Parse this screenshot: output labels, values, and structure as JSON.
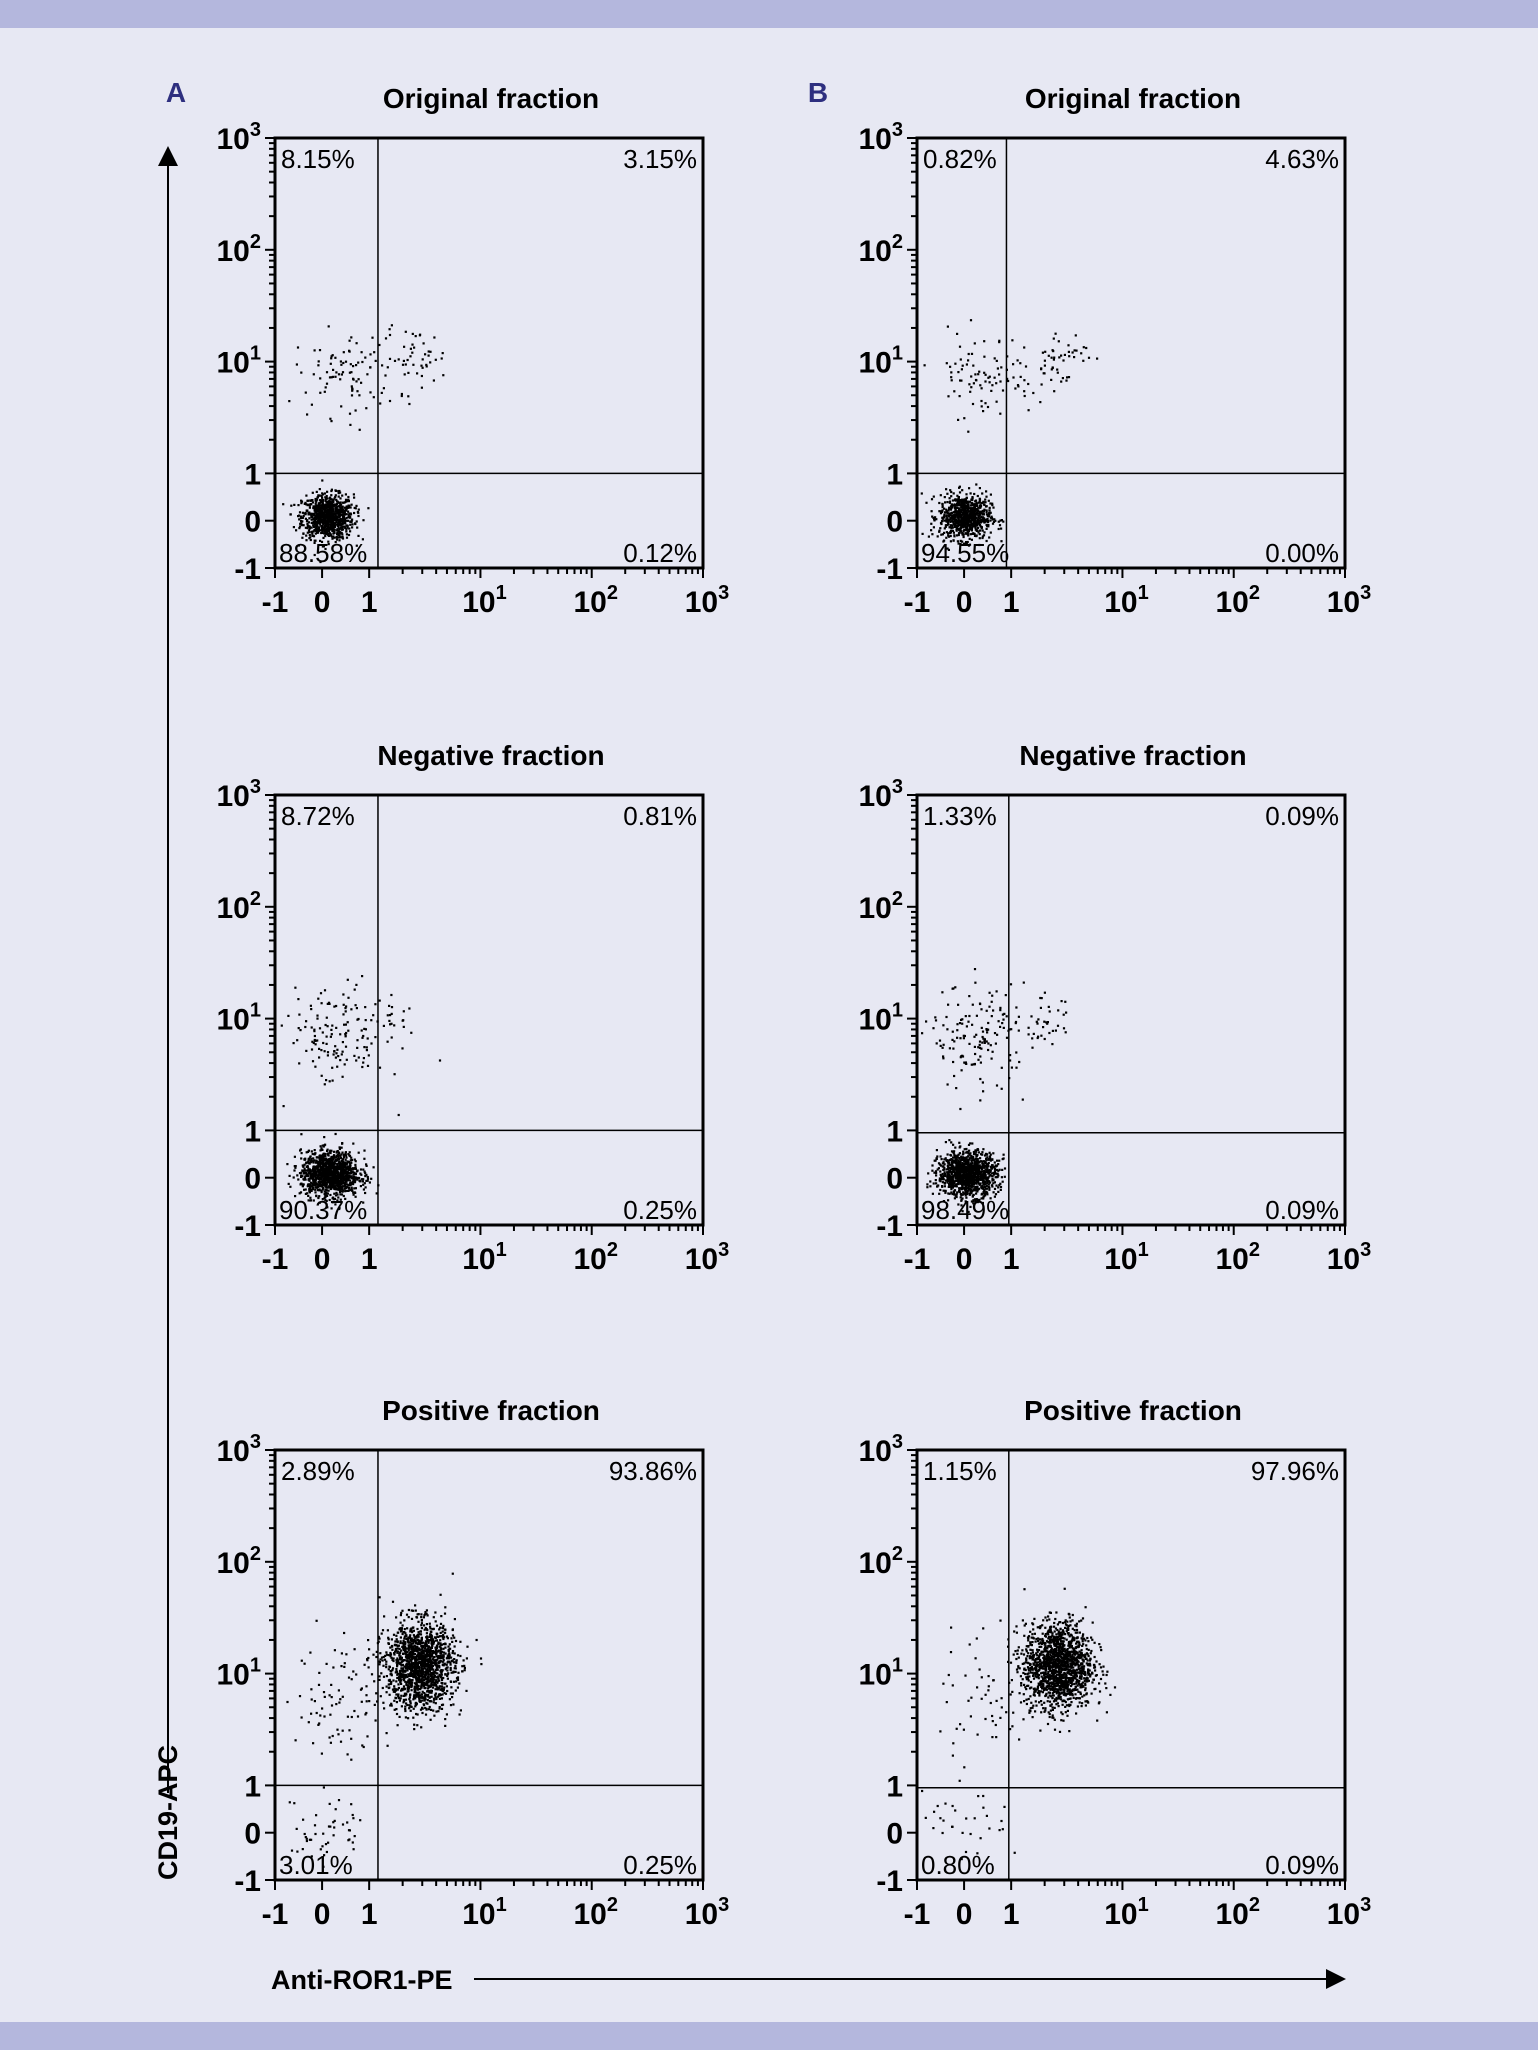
{
  "colors": {
    "background": "#e7e8f3",
    "band": "#b4b7dd",
    "panel_letter": "#2e2f7f",
    "ink": "#000000"
  },
  "figure": {
    "panel_letters": [
      "A",
      "B"
    ],
    "y_axis_label": "CD19-APC",
    "x_axis_label": "Anti-ROR1-PE"
  },
  "chart_data": [
    {
      "type": "scatter",
      "panel": "A",
      "title": "Original fraction",
      "x_scale": "biexponential",
      "y_scale": "biexponential",
      "xlim": [
        -1,
        1000
      ],
      "ylim": [
        -1,
        1000
      ],
      "x_ticks": [
        "-1",
        "0",
        "1",
        "10¹",
        "10²",
        "10³"
      ],
      "y_ticks": [
        "-1",
        "0",
        "1",
        "10¹",
        "10²",
        "10³"
      ],
      "gate": {
        "x": 1.2,
        "y": 1.0
      },
      "quadrants": {
        "upper_left": "8.15%",
        "upper_right": "3.15%",
        "lower_left": "88.58%",
        "lower_right": "0.12%"
      },
      "populations": [
        {
          "cx": 0.1,
          "cy": 0.1,
          "sx": 0.15,
          "sy": 0.13,
          "n": 900
        },
        {
          "cx": 0.5,
          "cy": 8,
          "sx": 0.3,
          "sy": 0.25,
          "n": 95
        },
        {
          "cx": 2.6,
          "cy": 11,
          "sx": 0.18,
          "sy": 0.17,
          "n": 45
        }
      ]
    },
    {
      "type": "scatter",
      "panel": "B",
      "title": "Original fraction",
      "x_scale": "biexponential",
      "y_scale": "biexponential",
      "xlim": [
        -1,
        1000
      ],
      "ylim": [
        -1,
        1000
      ],
      "x_ticks": [
        "-1",
        "0",
        "1",
        "10¹",
        "10²",
        "10³"
      ],
      "y_ticks": [
        "-1",
        "0",
        "1",
        "10¹",
        "10²",
        "10³"
      ],
      "gate": {
        "x": 0.9,
        "y": 1.0
      },
      "quadrants": {
        "upper_left": "0.82%",
        "upper_right": "4.63%",
        "lower_left": "94.55%",
        "lower_right": "0.00%"
      },
      "populations": [
        {
          "cx": 0.0,
          "cy": 0.1,
          "sx": 0.15,
          "sy": 0.13,
          "n": 800
        },
        {
          "cx": 0.4,
          "cy": 8,
          "sx": 0.3,
          "sy": 0.25,
          "n": 90
        },
        {
          "cx": 2.5,
          "cy": 11,
          "sx": 0.18,
          "sy": 0.17,
          "n": 50
        }
      ]
    },
    {
      "type": "scatter",
      "panel": "A",
      "title": "Negative fraction",
      "x_scale": "biexponential",
      "y_scale": "biexponential",
      "xlim": [
        -1,
        1000
      ],
      "ylim": [
        -1,
        1000
      ],
      "x_ticks": [
        "-1",
        "0",
        "1",
        "10¹",
        "10²",
        "10³"
      ],
      "y_ticks": [
        "-1",
        "0",
        "1",
        "10¹",
        "10²",
        "10³"
      ],
      "gate": {
        "x": 1.2,
        "y": 1.0
      },
      "quadrants": {
        "upper_left": "8.72%",
        "upper_right": "0.81%",
        "lower_left": "90.37%",
        "lower_right": "0.25%"
      },
      "populations": [
        {
          "cx": 0.15,
          "cy": 0.1,
          "sx": 0.17,
          "sy": 0.13,
          "n": 1200
        },
        {
          "cx": 0.3,
          "cy": 7,
          "sx": 0.28,
          "sy": 0.3,
          "n": 140
        },
        {
          "cx": 1.8,
          "cy": 9,
          "sx": 0.12,
          "sy": 0.15,
          "n": 20
        }
      ]
    },
    {
      "type": "scatter",
      "panel": "B",
      "title": "Negative fraction",
      "x_scale": "biexponential",
      "y_scale": "biexponential",
      "xlim": [
        -1,
        1000
      ],
      "ylim": [
        -1,
        1000
      ],
      "x_ticks": [
        "-1",
        "0",
        "1",
        "10¹",
        "10²",
        "10³"
      ],
      "y_ticks": [
        "-1",
        "0",
        "1",
        "10¹",
        "10²",
        "10³"
      ],
      "gate": {
        "x": 0.95,
        "y": 0.95
      },
      "quadrants": {
        "upper_left": "1.33%",
        "upper_right": "0.09%",
        "lower_left": "98.49%",
        "lower_right": "0.09%"
      },
      "populations": [
        {
          "cx": 0.05,
          "cy": 0.1,
          "sx": 0.17,
          "sy": 0.13,
          "n": 1200
        },
        {
          "cx": 0.3,
          "cy": 7,
          "sx": 0.28,
          "sy": 0.3,
          "n": 150
        },
        {
          "cx": 2.0,
          "cy": 9,
          "sx": 0.14,
          "sy": 0.15,
          "n": 35
        }
      ]
    },
    {
      "type": "scatter",
      "panel": "A",
      "title": "Positive fraction",
      "x_scale": "biexponential",
      "y_scale": "biexponential",
      "xlim": [
        -1,
        1000
      ],
      "ylim": [
        -1,
        1000
      ],
      "x_ticks": [
        "-1",
        "0",
        "1",
        "10¹",
        "10²",
        "10³"
      ],
      "y_ticks": [
        "-1",
        "0",
        "1",
        "10¹",
        "10²",
        "10³"
      ],
      "gate": {
        "x": 1.2,
        "y": 1.0
      },
      "quadrants": {
        "upper_left": "2.89%",
        "upper_right": "93.86%",
        "lower_left": "3.01%",
        "lower_right": "0.25%"
      },
      "populations": [
        {
          "cx": 2.8,
          "cy": 12,
          "sx": 0.2,
          "sy": 0.25,
          "n": 1500
        },
        {
          "cx": 0.5,
          "cy": 6,
          "sx": 0.3,
          "sy": 0.4,
          "n": 90
        },
        {
          "cx": 0.0,
          "cy": 0.1,
          "sx": 0.25,
          "sy": 0.2,
          "n": 50
        }
      ]
    },
    {
      "type": "scatter",
      "panel": "B",
      "title": "Positive fraction",
      "x_scale": "biexponential",
      "y_scale": "biexponential",
      "xlim": [
        -1,
        1000
      ],
      "ylim": [
        -1,
        1000
      ],
      "x_ticks": [
        "-1",
        "0",
        "1",
        "10¹",
        "10²",
        "10³"
      ],
      "y_ticks": [
        "-1",
        "0",
        "1",
        "10¹",
        "10²",
        "10³"
      ],
      "gate": {
        "x": 0.95,
        "y": 0.95
      },
      "quadrants": {
        "upper_left": "1.15%",
        "upper_right": "97.96%",
        "lower_left": "0.80%",
        "lower_right": "0.09%"
      },
      "populations": [
        {
          "cx": 2.6,
          "cy": 12,
          "sx": 0.2,
          "sy": 0.25,
          "n": 1500
        },
        {
          "cx": 0.5,
          "cy": 6,
          "sx": 0.3,
          "sy": 0.4,
          "n": 60
        },
        {
          "cx": 0.0,
          "cy": 0.1,
          "sx": 0.25,
          "sy": 0.2,
          "n": 30
        }
      ]
    }
  ]
}
